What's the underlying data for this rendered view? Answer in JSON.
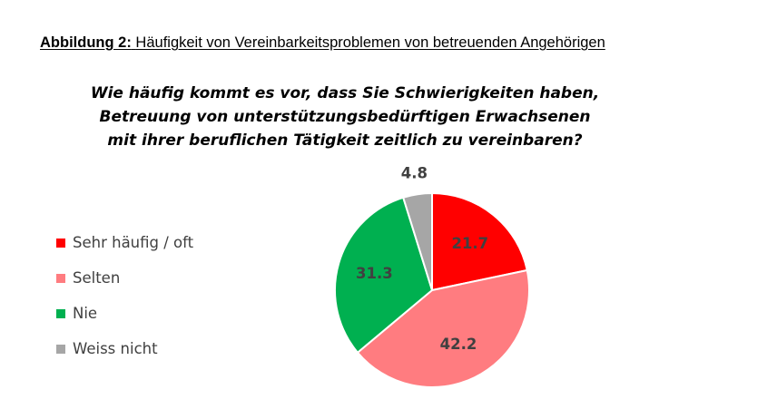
{
  "figure": {
    "label": "Abbildung 2:",
    "caption": "Häufigkeit von Vereinbarkeitsproblemen von betreuenden Angehörigen"
  },
  "chart_data": {
    "type": "pie",
    "title_lines": [
      "Wie häufig kommt es vor, dass Sie Schwierigkeiten haben,",
      "Betreuung von unterstützungsbedürftigen Erwachsenen",
      "mit ihrer beruflichen Tätigkeit zeitlich zu vereinbaren?"
    ],
    "legend_position": "left",
    "slices": [
      {
        "label": "Sehr häufig / oft",
        "value": 21.7,
        "value_label": "21.7",
        "color": "#ff0000"
      },
      {
        "label": "Selten",
        "value": 42.2,
        "value_label": "42.2",
        "color": "#ff7c80"
      },
      {
        "label": "Nie",
        "value": 31.3,
        "value_label": "31.3",
        "color": "#00b050"
      },
      {
        "label": "Weiss nicht",
        "value": 4.8,
        "value_label": "4.8",
        "color": "#a6a6a6"
      }
    ]
  }
}
